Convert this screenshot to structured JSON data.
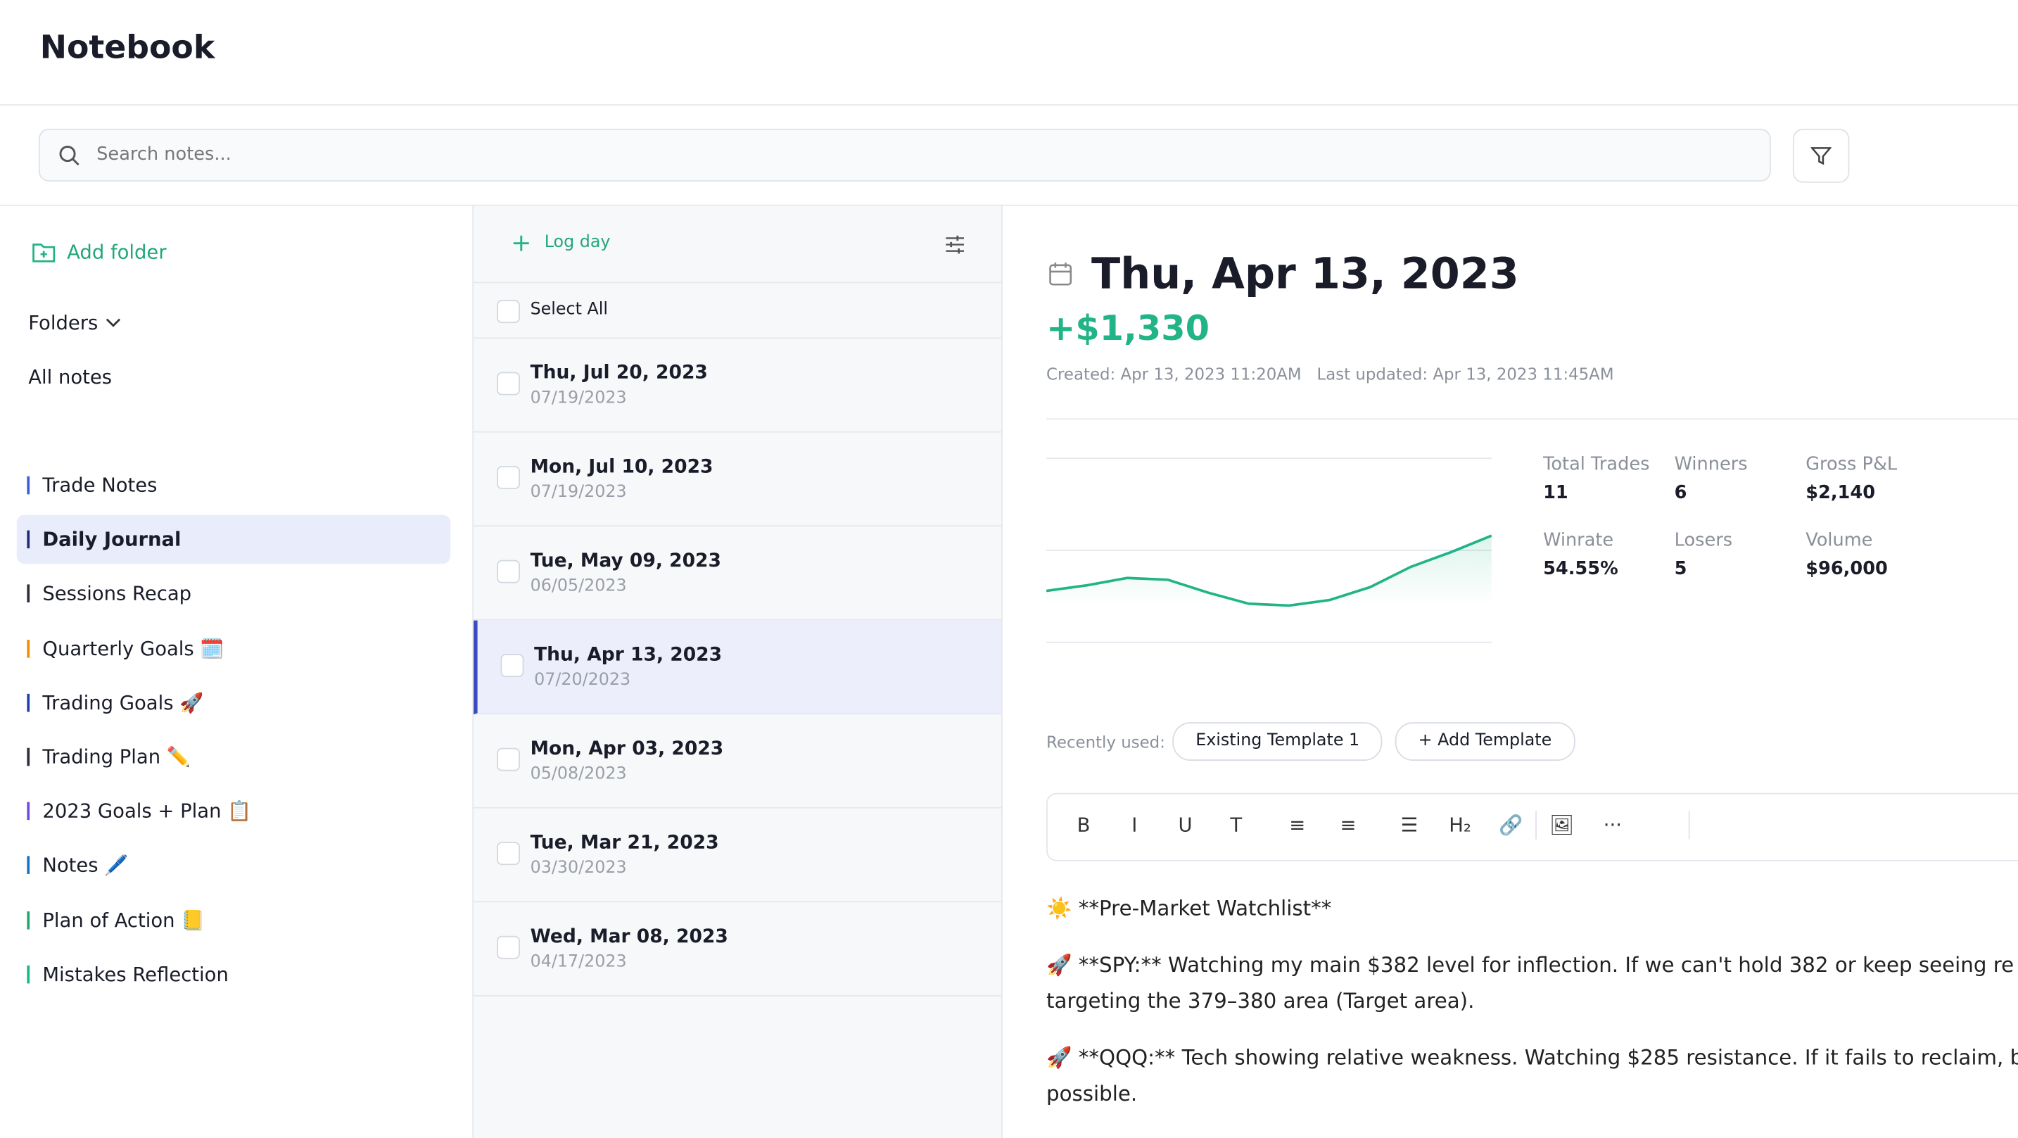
{
  "header": {
    "title": "Notebook"
  },
  "search": {
    "placeholder": "Search notes..."
  },
  "sidebar": {
    "add_folder": "Add folder",
    "folders_label": "Folders",
    "all_notes": "All notes",
    "folders": [
      {
        "name": "Trade Notes",
        "color": "#3b5bdb"
      },
      {
        "name": "Daily Journal",
        "color": "#1e2a78"
      },
      {
        "name": "Sessions Recap",
        "color": "#2b2f3a"
      },
      {
        "name": "Quarterly Goals 🗓️",
        "color": "#f08c00"
      },
      {
        "name": "Trading Goals 🚀",
        "color": "#1c3faa"
      },
      {
        "name": "Trading Plan ✏️",
        "color": "#2b2f3a"
      },
      {
        "name": "2023 Goals + Plan 📋",
        "color": "#7048e8"
      },
      {
        "name": "Notes 🖊️",
        "color": "#1971c2"
      },
      {
        "name": "Plan of Action 📒",
        "color": "#20a86b"
      },
      {
        "name": "Mistakes Reflection",
        "color": "#12b886"
      }
    ],
    "selected": 1
  },
  "list": {
    "log_day": "Log day",
    "select_all": "Select All",
    "entries": [
      {
        "title": "Thu, Jul 20, 2023",
        "date": "07/19/2023"
      },
      {
        "title": "Mon, Jul 10, 2023",
        "date": "07/19/2023"
      },
      {
        "title": "Tue, May 09, 2023",
        "date": "06/05/2023"
      },
      {
        "title": "Thu, Apr 13, 2023",
        "date": "07/20/2023"
      },
      {
        "title": "Mon, Apr 03, 2023",
        "date": "05/08/2023"
      },
      {
        "title": "Tue, Mar 21, 2023",
        "date": "03/30/2023"
      },
      {
        "title": "Wed, Mar 08, 2023",
        "date": "04/17/2023"
      }
    ],
    "selected": 3
  },
  "note": {
    "title": "Thu, Apr 13, 2023",
    "pnl": "+$1,330",
    "meta": "Created: Apr 13, 2023 11:20AM   Last updated: Apr 13, 2023 11:45AM",
    "chart": {
      "values": [
        28,
        31,
        35,
        34,
        27,
        21,
        20,
        23,
        30,
        41,
        49,
        58
      ],
      "ylim": [
        0,
        100
      ],
      "yticks": [
        0,
        50,
        100
      ],
      "color": "#20b486"
    },
    "stats": [
      {
        "label": "Total Trades",
        "value": "11"
      },
      {
        "label": "Winners",
        "value": "6"
      },
      {
        "label": "Gross P&L",
        "value": "$2,140"
      },
      {
        "label": "Winrate",
        "value": "54.55%"
      },
      {
        "label": "Losers",
        "value": "5"
      },
      {
        "label": "Volume",
        "value": "$96,000"
      }
    ],
    "recently_used": "Recently used:",
    "templates": [
      "Existing Template 1",
      "+ Add Template"
    ],
    "toolbar": [
      "B",
      "I",
      "U",
      "T",
      "≡",
      "≡",
      "☰",
      "H₂",
      "🔗",
      "🖼",
      "···"
    ],
    "paragraphs": [
      [
        "☀️ **Pre-Market Watchlist**"
      ],
      [
        "🚀 **SPY:** Watching my main $382 level for inflection. If we can't hold 382 or keep seeing re",
        "targeting the 379–380 area (Target area)."
      ],
      [
        "🚀 **QQQ:** Tech showing relative weakness. Watching $285 resistance. If it fails to reclaim, b",
        "possible."
      ]
    ]
  }
}
